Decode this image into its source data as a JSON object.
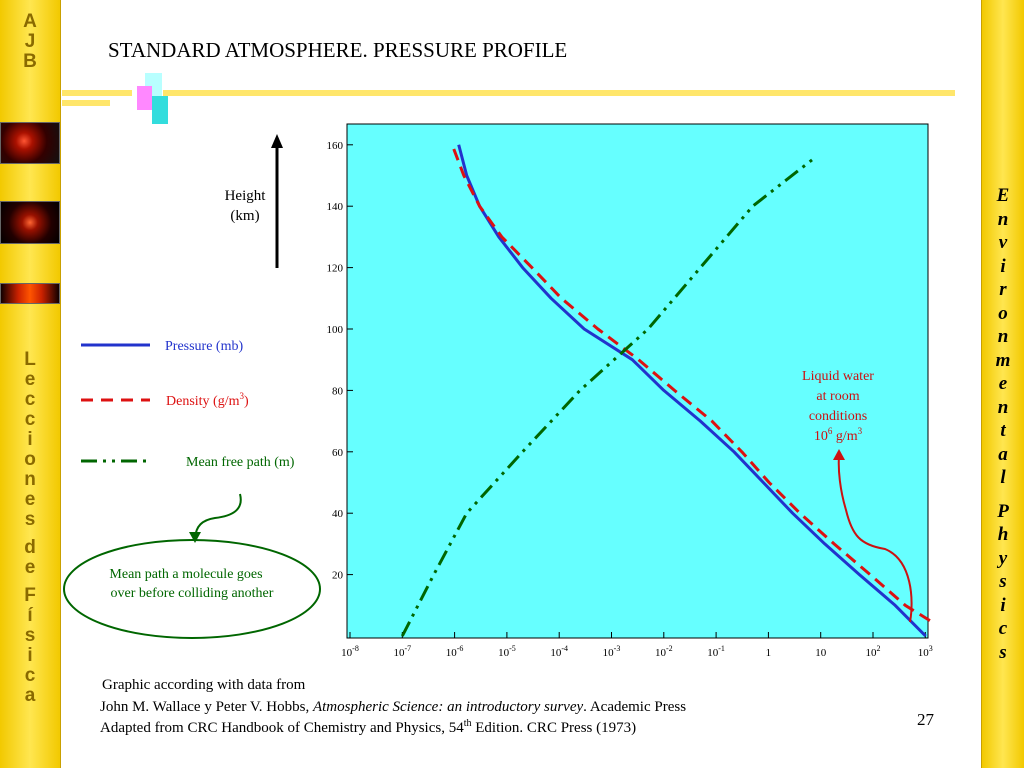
{
  "header": {
    "title": "STANDARD ATMOSPHERE. PRESSURE PROFILE"
  },
  "sidebar_left": {
    "logo_letters": [
      "A",
      "J",
      "B"
    ],
    "vertical_letters": [
      "L",
      "e",
      "c",
      "c",
      "i",
      "o",
      "n",
      "e",
      "s",
      "",
      "d",
      "e",
      "",
      "F",
      "í",
      "s",
      "i",
      "c",
      "a"
    ]
  },
  "sidebar_right": {
    "vertical_letters": [
      "E",
      "n",
      "v",
      "i",
      "r",
      "o",
      "n",
      "m",
      "e",
      "n",
      "t",
      "a",
      "l",
      "",
      "P",
      "h",
      "y",
      "s",
      "i",
      "c",
      "s"
    ]
  },
  "height_label": {
    "line1": "Height",
    "line2": "(km)"
  },
  "legend": {
    "pressure": "Pressure (mb)",
    "density": "Density (g/m",
    "density_sup": "3",
    "density_close": ")",
    "mean_free_path": "Mean free path (m)"
  },
  "annotation_water": {
    "line1": "Liquid water",
    "line2": "at room",
    "line3": "conditions",
    "line4_base": "10",
    "line4_sup": "6",
    "line4_unit": " g/m",
    "line4_unit_sup": "3"
  },
  "callout": {
    "line1": "Mean path a molecule goes",
    "line2": "over before colliding another"
  },
  "footer": {
    "line1": "Graphic according with data from",
    "line2_a": "John M. Wallace y Peter V. Hobbs, ",
    "line2_italic": "Atmospheric Science: an introductory survey",
    "line2_b": ". Academic Press",
    "line3_a": "Adapted from CRC Handbook of Chemistry and Physics, 54",
    "line3_sup": "th",
    "line3_b": " Edition. CRC Press (1973)"
  },
  "page_number": "27",
  "colors": {
    "plot_bg": "#66ffff",
    "pressure": "#2233cc",
    "density": "#dd1111",
    "mean_free_path": "#006600",
    "annotation": "#cc1111",
    "sidebar": "#f2c900"
  },
  "chart_data": {
    "type": "line",
    "title": "",
    "xscale": "log",
    "xlim_exp": [
      -8,
      3
    ],
    "ylim": [
      0,
      165
    ],
    "x_ticks": [
      {
        "base": "10",
        "sup": "-8"
      },
      {
        "base": "10",
        "sup": "-7"
      },
      {
        "base": "10",
        "sup": "-6"
      },
      {
        "base": "10",
        "sup": "-5"
      },
      {
        "base": "10",
        "sup": "-4"
      },
      {
        "base": "10",
        "sup": "-3"
      },
      {
        "base": "10",
        "sup": "-2"
      },
      {
        "base": "10",
        "sup": "-1"
      },
      {
        "base": "1",
        "sup": ""
      },
      {
        "base": "10",
        "sup": ""
      },
      {
        "base": "10",
        "sup": "2"
      },
      {
        "base": "10",
        "sup": "3"
      }
    ],
    "y_ticks": [
      "20",
      "40",
      "60",
      "80",
      "100",
      "120",
      "140",
      "160"
    ],
    "series": [
      {
        "name": "Pressure (mb)",
        "style": "solid",
        "points": [
          [
            1013,
            0
          ],
          [
            265,
            10
          ],
          [
            55,
            20
          ],
          [
            12,
            30
          ],
          [
            2.9,
            40
          ],
          [
            0.8,
            50
          ],
          [
            0.22,
            60
          ],
          [
            0.05,
            70
          ],
          [
            0.01,
            80
          ],
          [
            0.0025,
            90
          ],
          [
            0.0003,
            100
          ],
          [
            7e-05,
            110
          ],
          [
            2e-05,
            120
          ],
          [
            7e-06,
            130
          ],
          [
            3e-06,
            140
          ],
          [
            1.7e-06,
            150
          ],
          [
            1.2e-06,
            160
          ]
        ]
      },
      {
        "name": "Density (g/m3)",
        "style": "dashed",
        "points": [
          [
            1225,
            5
          ],
          [
            413,
            10
          ],
          [
            88,
            20
          ],
          [
            18,
            30
          ],
          [
            4,
            40
          ],
          [
            1.03,
            50
          ],
          [
            0.31,
            60
          ],
          [
            0.083,
            70
          ],
          [
            0.016,
            80
          ],
          [
            0.0033,
            90
          ],
          [
            0.00055,
            100
          ],
          [
            0.00011,
            110
          ],
          [
            3e-05,
            120
          ],
          [
            8e-06,
            130
          ],
          [
            3e-06,
            140
          ],
          [
            1.5e-06,
            150
          ],
          [
            9e-07,
            160
          ]
        ]
      },
      {
        "name": "Mean free path (m)",
        "style": "dashdot",
        "points": [
          [
            1e-07,
            0
          ],
          [
            4e-07,
            20
          ],
          [
            1.7e-06,
            40
          ],
          [
            2e-05,
            60
          ],
          [
            0.00025,
            80
          ],
          [
            0.005,
            100
          ],
          [
            0.05,
            120
          ],
          [
            0.5,
            140
          ],
          [
            8,
            156
          ]
        ]
      }
    ]
  }
}
